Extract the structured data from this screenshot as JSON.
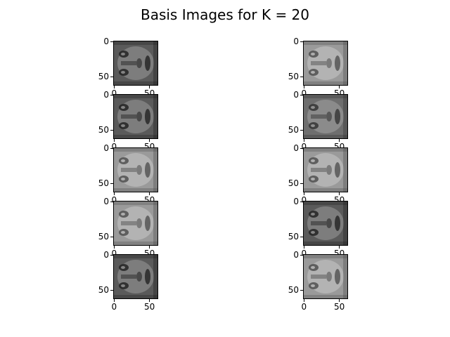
{
  "title": "Basis Images for K = 20",
  "tick_labels": {
    "y_top": "0",
    "y_bottom": "50",
    "x_left": "0",
    "x_right": "50"
  },
  "panels": [
    {
      "id": "basis-1",
      "face_tone": "dark"
    },
    {
      "id": "basis-2",
      "face_tone": "light"
    },
    {
      "id": "basis-3",
      "face_tone": "dark"
    },
    {
      "id": "basis-4",
      "face_tone": "mid"
    },
    {
      "id": "basis-5",
      "face_tone": "light"
    },
    {
      "id": "basis-6",
      "face_tone": "light"
    },
    {
      "id": "basis-7",
      "face_tone": "light"
    },
    {
      "id": "basis-8",
      "face_tone": "dark"
    },
    {
      "id": "basis-9",
      "face_tone": "dark"
    },
    {
      "id": "basis-10",
      "face_tone": "light"
    }
  ],
  "colormap": "gray"
}
